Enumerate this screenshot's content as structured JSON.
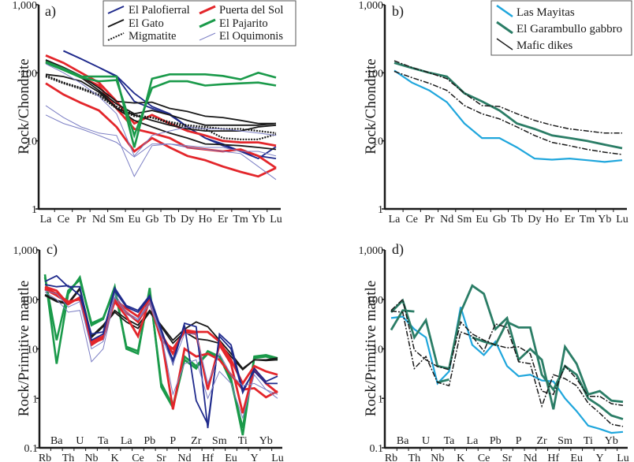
{
  "chart_data": [
    {
      "id": "a",
      "panel_label": "a)",
      "type": "line",
      "ylabel": "Rock/Chondrite",
      "yscale": "log",
      "ylim": [
        1,
        1000
      ],
      "yticks": [
        {
          "value": 1000,
          "label": "1,000"
        },
        {
          "value": 100,
          "label": "100"
        },
        {
          "value": 10,
          "label": "10"
        },
        {
          "value": 1,
          "label": "1"
        }
      ],
      "categories": [
        "La",
        "Ce",
        "Pr",
        "Nd",
        "Sm",
        "Eu",
        "Gb",
        "Tb",
        "Dy",
        "Ho",
        "Er",
        "Tm",
        "Yb",
        "Lu"
      ],
      "legend_position": "top-right",
      "legend": [
        {
          "label": "El Palofierral",
          "color": "#1f2a8c",
          "style": "solid",
          "width": "medium"
        },
        {
          "label": "Puerta del Sol",
          "color": "#e3262b",
          "style": "solid",
          "width": "thick"
        },
        {
          "label": "El Gato",
          "color": "#1a1a1a",
          "style": "solid",
          "width": "medium"
        },
        {
          "label": "El Pajarito",
          "color": "#1a9a4a",
          "style": "solid",
          "width": "thick"
        },
        {
          "label": "Migmatite",
          "color": "#1a1a1a",
          "style": "dotted",
          "width": "medium"
        },
        {
          "label": "El Oquimonis",
          "color": "#7b7ec4",
          "style": "solid",
          "width": "thin"
        }
      ],
      "series": [
        {
          "name": "El Palofierral",
          "values": [
            null,
            210,
            160,
            120,
            90,
            50,
            32,
            25,
            16,
            11,
            9,
            7,
            6,
            5.5
          ]
        },
        {
          "name": "El Palofierral",
          "values": [
            null,
            210,
            160,
            120,
            88,
            38,
            30,
            24,
            16,
            11,
            8.5,
            7,
            5.5,
            8.2
          ]
        },
        {
          "name": "Puerta del Sol",
          "values": [
            180,
            140,
            100,
            72,
            38,
            18,
            24,
            18,
            14,
            12,
            10,
            9.5,
            9.5,
            8.5
          ]
        },
        {
          "name": "Puerta del Sol",
          "values": [
            145,
            115,
            85,
            65,
            30,
            15,
            13,
            11,
            8,
            7.5,
            7,
            7.5,
            6,
            4
          ]
        },
        {
          "name": "Puerta del Sol",
          "values": [
            70,
            48,
            36,
            28,
            16,
            7,
            11,
            8,
            6,
            5.2,
            4.2,
            3.5,
            3,
            4
          ]
        },
        {
          "name": "El Gato",
          "values": [
            155,
            120,
            90,
            60,
            38,
            36,
            37,
            30,
            27,
            23,
            22,
            20,
            18,
            18
          ]
        },
        {
          "name": "El Gato",
          "values": [
            150,
            115,
            85,
            55,
            35,
            25,
            28,
            24,
            20,
            17,
            17,
            17,
            17,
            18
          ]
        },
        {
          "name": "El Gato",
          "values": [
            95,
            88,
            75,
            52,
            30,
            24,
            20,
            17,
            15,
            14,
            14,
            14,
            16,
            17
          ]
        },
        {
          "name": "El Gato",
          "values": [
            null,
            null,
            null,
            55,
            30,
            20,
            16,
            13,
            11,
            9,
            8.8,
            8.5,
            8,
            7.5
          ]
        },
        {
          "name": "Migmatite",
          "values": [
            92,
            72,
            60,
            48,
            32,
            24,
            22,
            18,
            16,
            15,
            11,
            10.5,
            10.5,
            12.5
          ]
        },
        {
          "name": "Migmatite",
          "values": [
            88,
            70,
            58,
            46,
            30,
            23,
            22,
            19,
            17,
            16,
            15,
            15,
            14,
            13
          ]
        },
        {
          "name": "El Pajarito",
          "values": [
            145,
            115,
            88,
            88,
            88,
            8,
            82,
            95,
            95,
            95,
            90,
            80,
            100,
            85
          ]
        },
        {
          "name": "El Pajarito",
          "values": [
            140,
            110,
            85,
            75,
            78,
            12,
            60,
            75,
            75,
            65,
            68,
            70,
            72,
            65
          ]
        },
        {
          "name": "El Oquimonis",
          "values": [
            135,
            100,
            70,
            45,
            25,
            6,
            12,
            14,
            16,
            15,
            15,
            14,
            13,
            12
          ]
        },
        {
          "name": "El Oquimonis",
          "values": [
            33,
            22,
            16,
            13,
            12,
            3,
            8.5,
            9,
            8.5,
            8,
            8,
            7,
            7,
            6
          ]
        },
        {
          "name": "El Oquimonis",
          "values": [
            24,
            18,
            15,
            12,
            9.5,
            5.8,
            9,
            9,
            8,
            7.5,
            7,
            6.5,
            4.2,
            2.7
          ]
        }
      ]
    },
    {
      "id": "b",
      "panel_label": "b)",
      "type": "line",
      "ylabel": "Rock/Chondrite",
      "yscale": "log",
      "ylim": [
        1,
        1000
      ],
      "yticks": [
        {
          "value": 1000,
          "label": "1,000"
        },
        {
          "value": 100,
          "label": "100"
        },
        {
          "value": 10,
          "label": "10"
        },
        {
          "value": 1,
          "label": "1"
        }
      ],
      "categories": [
        "La",
        "Ce",
        "Pr",
        "Nd",
        "Sm",
        "Eu",
        "Gb",
        "Tb",
        "Dy",
        "Ho",
        "Er",
        "Tm",
        "Yb",
        "Lu"
      ],
      "legend_position": "top-right",
      "legend": [
        {
          "label": "Las Mayitas",
          "color": "#1fa6dc",
          "style": "solid"
        },
        {
          "label": "El Garambullo gabbro",
          "color": "#2b7d66",
          "style": "solid"
        },
        {
          "label": "Mafic dikes",
          "color": "#1a1a1a",
          "style": "dashed"
        }
      ],
      "series": [
        {
          "name": "Las Mayitas",
          "values": [
            108,
            72,
            55,
            37,
            18,
            11,
            11,
            8,
            5.5,
            5.3,
            5.5,
            5.2,
            4.9,
            5.2
          ]
        },
        {
          "name": "El Garambullo gabbro",
          "values": [
            140,
            118,
            100,
            88,
            50,
            38,
            28,
            18,
            15,
            12,
            11,
            10,
            8.8,
            7.8
          ]
        },
        {
          "name": "Mafic dikes",
          "values": [
            150,
            120,
            100,
            82,
            50,
            33,
            32,
            25,
            20,
            17,
            15,
            14,
            13,
            13
          ]
        },
        {
          "name": "Mafic dikes",
          "values": [
            105,
            85,
            70,
            55,
            33,
            25,
            21,
            16,
            12,
            9.5,
            8.5,
            7.5,
            6.8,
            6.3
          ]
        }
      ]
    },
    {
      "id": "c",
      "panel_label": "c)",
      "type": "line",
      "ylabel": "Rock/Primitive mantle",
      "yscale": "log",
      "ylim": [
        0.1,
        1000
      ],
      "yticks": [
        {
          "value": 1000,
          "label": "1,000"
        },
        {
          "value": 100,
          "label": "100"
        },
        {
          "value": 10,
          "label": "10"
        },
        {
          "value": 1,
          "label": "1"
        },
        {
          "value": 0.1,
          "label": "0.1"
        }
      ],
      "categories": [
        "Rb",
        "Ba",
        "Th",
        "U",
        "Nb",
        "Ta",
        "K",
        "La",
        "Ce",
        "Pb",
        "Sr",
        "P",
        "Nd",
        "Zr",
        "Hf",
        "Sm",
        "Eu",
        "Ti",
        "Y",
        "Yb",
        "Lu"
      ],
      "series": [
        {
          "name": "El Pajarito",
          "values": [
            320,
            5,
            130,
            280,
            30,
            40,
            180,
            10,
            8,
            170,
            1.7,
            0.65,
            6,
            4,
            9,
            7,
            2.5,
            0.18,
            7,
            7.5,
            6.5
          ]
        },
        {
          "name": "El Pajarito",
          "values": [
            280,
            15,
            150,
            250,
            33,
            42,
            160,
            11,
            9,
            150,
            2,
            0.7,
            7,
            4.5,
            8,
            7,
            2.2,
            0.25,
            6.5,
            7,
            6
          ]
        },
        {
          "name": "El Gato",
          "values": [
            125,
            95,
            85,
            170,
            18,
            30,
            60,
            40,
            30,
            60,
            30,
            15,
            25,
            35,
            28,
            15,
            8,
            4,
            6,
            6,
            6.5
          ]
        },
        {
          "name": "El Gato",
          "values": [
            120,
            90,
            80,
            160,
            17,
            28,
            55,
            35,
            26,
            55,
            28,
            13,
            22,
            16,
            15,
            13,
            7,
            3.8,
            6,
            5.8,
            6
          ]
        },
        {
          "name": "Puerta del Sol",
          "values": [
            180,
            150,
            80,
            110,
            12,
            17,
            100,
            65,
            45,
            110,
            20,
            8,
            24,
            22,
            22,
            14,
            6,
            2,
            4.5,
            3.5,
            3
          ]
        },
        {
          "name": "Puerta del Sol",
          "values": [
            170,
            130,
            90,
            100,
            14,
            18,
            90,
            45,
            18,
            100,
            18,
            0.6,
            10,
            7,
            8,
            6,
            3,
            1.5,
            1.6,
            1.05,
            1.4
          ]
        },
        {
          "name": "Puerta del Sol",
          "values": [
            160,
            120,
            85,
            105,
            13,
            16,
            95,
            55,
            35,
            90,
            15,
            10,
            22,
            20,
            1.5,
            12,
            5,
            0.5,
            4,
            2,
            1.3
          ]
        },
        {
          "name": "El Palofierral",
          "values": [
            230,
            300,
            180,
            180,
            15,
            20,
            170,
            75,
            60,
            120,
            25,
            5,
            33,
            28,
            0.25,
            20,
            12,
            1.5,
            3.5,
            2,
            2
          ]
        },
        {
          "name": "El Palofierral",
          "values": [
            200,
            180,
            190,
            120,
            20,
            22,
            150,
            70,
            55,
            110,
            22,
            6,
            30,
            0.9,
            0.3,
            18,
            10,
            1.3,
            4,
            2.2,
            2.8
          ]
        },
        {
          "name": "El Oquimonis",
          "values": [
            150,
            130,
            70,
            90,
            10,
            14,
            130,
            55,
            40,
            90,
            20,
            1.2,
            5,
            6,
            1,
            3.5,
            2,
            0.4,
            3,
            1.5,
            1
          ]
        },
        {
          "name": "El Oquimonis",
          "values": [
            140,
            100,
            55,
            60,
            5.5,
            10,
            110,
            50,
            38,
            80,
            18,
            5,
            20,
            20,
            2,
            8,
            3,
            1.8,
            2,
            1.5,
            1.2
          ]
        }
      ]
    },
    {
      "id": "d",
      "panel_label": "d)",
      "type": "line",
      "ylabel": "Rock/Primitive mantle",
      "yscale": "log",
      "ylim": [
        0.1,
        1000
      ],
      "yticks": [
        {
          "value": 1000,
          "label": "1,000"
        },
        {
          "value": 100,
          "label": "100"
        },
        {
          "value": 10,
          "label": "10"
        },
        {
          "value": 1,
          "label": "1"
        },
        {
          "value": 0.1,
          "label": "0.1"
        }
      ],
      "categories": [
        "Rb",
        "Ba",
        "Th",
        "U",
        "Nb",
        "Ta",
        "K",
        "La",
        "Ce",
        "Pb",
        "Sr",
        "P",
        "Nd",
        "Zr",
        "Hf",
        "Sm",
        "Eu",
        "Ti",
        "Y",
        "Yb",
        "Lu"
      ],
      "series": [
        {
          "name": "Las Mayitas",
          "values": [
            42,
            45,
            25,
            17,
            2,
            3.5,
            70,
            12,
            7.5,
            14,
            4.5,
            2.8,
            3,
            2.3,
            2.2,
            1,
            0.55,
            0.28,
            0.24,
            0.2,
            0.21
          ]
        },
        {
          "name": "El Garambullo gabbro",
          "values": [
            55,
            95,
            17,
            38,
            4.5,
            4,
            55,
            190,
            130,
            25,
            42,
            6,
            10,
            6,
            0.6,
            11,
            5,
            1.2,
            1.4,
            0.9,
            0.85
          ]
        },
        {
          "name": "El Garambullo gabbro",
          "values": [
            24,
            60,
            57,
            null,
            2.1,
            2.4,
            null,
            17,
            14,
            12,
            35,
            27,
            27,
            3,
            1.5,
            4.5,
            3,
            1,
            0.7,
            0.45,
            0.38
          ]
        },
        {
          "name": "Mafic dikes",
          "values": [
            60,
            100,
            9.5,
            6,
            4.4,
            3.8,
            35,
            20,
            15,
            12,
            10.5,
            11,
            8,
            1.4,
            1.2,
            4.5,
            2.5,
            1.1,
            1.1,
            0.78,
            0.72
          ]
        },
        {
          "name": "Mafic dikes",
          "values": [
            58,
            55,
            4,
            7,
            2.1,
            1.8,
            22,
            18,
            9,
            32,
            27,
            5.5,
            5,
            0.7,
            3,
            2.5,
            1.8,
            0.8,
            0.5,
            0.3,
            0.27
          ]
        }
      ]
    }
  ]
}
